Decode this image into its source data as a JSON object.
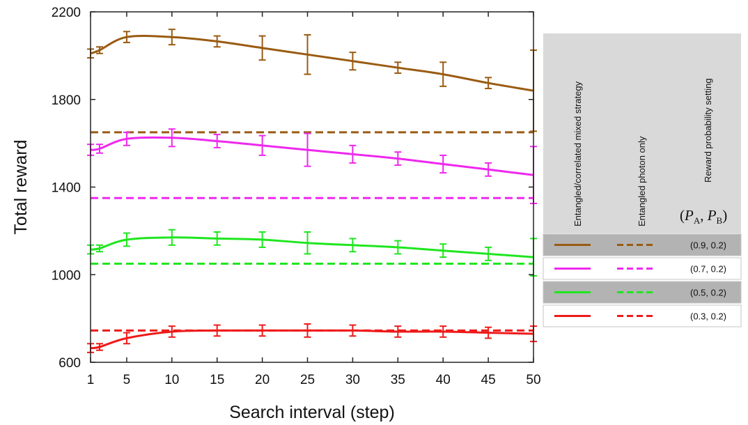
{
  "chart_data": {
    "type": "line",
    "xlabel": "Search interval (step)",
    "ylabel": "Total reward",
    "x_ticks": [
      1,
      5,
      10,
      15,
      20,
      25,
      30,
      35,
      40,
      45,
      50
    ],
    "xlim": [
      1,
      50
    ],
    "y_ticks": [
      600,
      1000,
      1400,
      1800,
      2200
    ],
    "ylim": [
      600,
      2200
    ],
    "grid": false,
    "legend": {
      "position": "right",
      "headers": {
        "strategy": "Entangled/correlated mixed strategy",
        "photon": "Entangled photon only",
        "setting": "Reward probability setting",
        "symbol_main": "P",
        "symbol_sub_a": "A",
        "symbol_sub_b": "B"
      },
      "rows": [
        {
          "label": "(0.9, 0.2)",
          "color": "#9a5b12",
          "shaded": true
        },
        {
          "label": "(0.7, 0.2)",
          "color": "#ee28ee",
          "shaded": false
        },
        {
          "label": "(0.5, 0.2)",
          "color": "#1fe61f",
          "shaded": true
        },
        {
          "label": "(0.3, 0.2)",
          "color": "#ee1a1a",
          "shaded": false
        }
      ]
    },
    "x": [
      1,
      2,
      5,
      10,
      15,
      20,
      25,
      30,
      35,
      40,
      45,
      50
    ],
    "series": [
      {
        "setting": "(0.9, 0.2)",
        "color": "#9a5b12",
        "mixed": [
          2010,
          2025,
          2085,
          2085,
          2065,
          2035,
          2005,
          1975,
          1945,
          1915,
          1875,
          1840
        ],
        "errors": [
          20,
          15,
          25,
          35,
          25,
          55,
          90,
          40,
          25,
          55,
          25,
          185
        ],
        "photon_only": 1650
      },
      {
        "setting": "(0.7, 0.2)",
        "color": "#ee28ee",
        "mixed": [
          1570,
          1575,
          1620,
          1625,
          1610,
          1590,
          1570,
          1550,
          1530,
          1505,
          1480,
          1455
        ],
        "errors": [
          25,
          20,
          30,
          40,
          30,
          45,
          75,
          40,
          30,
          40,
          30,
          130
        ],
        "photon_only": 1350
      },
      {
        "setting": "(0.5, 0.2)",
        "color": "#1fe61f",
        "mixed": [
          1115,
          1120,
          1160,
          1170,
          1165,
          1160,
          1145,
          1135,
          1125,
          1110,
          1095,
          1080
        ],
        "errors": [
          20,
          15,
          30,
          35,
          30,
          35,
          50,
          30,
          30,
          30,
          30,
          85
        ],
        "photon_only": 1050
      },
      {
        "setting": "(0.3, 0.2)",
        "color": "#ee1a1a",
        "mixed": [
          665,
          670,
          710,
          740,
          745,
          745,
          745,
          745,
          740,
          740,
          735,
          730
        ],
        "errors": [
          20,
          15,
          25,
          25,
          25,
          25,
          30,
          25,
          25,
          25,
          25,
          35
        ],
        "photon_only": 745
      }
    ]
  }
}
